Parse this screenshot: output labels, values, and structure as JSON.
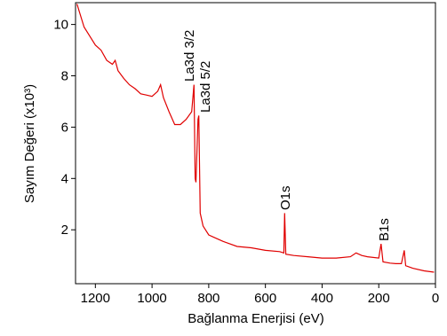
{
  "chart_data": {
    "type": "line",
    "x_label": "Bağlanma Enerjisi (eV)",
    "y_label": "Sayım Değeri (x10³)",
    "annotations": [
      "La3d 3/2",
      "La3d 5/2",
      "O1s",
      "B1s"
    ],
    "color": "#e00000",
    "x": [
      1265,
      1240,
      1220,
      1200,
      1180,
      1160,
      1140,
      1130,
      1120,
      1100,
      1080,
      1060,
      1040,
      1020,
      1000,
      980,
      970,
      960,
      940,
      920,
      900,
      880,
      860,
      852,
      848,
      845,
      838,
      835,
      830,
      820,
      800,
      780,
      750,
      700,
      650,
      600,
      550,
      535,
      532,
      528,
      500,
      450,
      400,
      350,
      300,
      280,
      260,
      240,
      200,
      192,
      185,
      160,
      140,
      120,
      110,
      105,
      80,
      40,
      5
    ],
    "values": [
      10.8,
      9.9,
      9.55,
      9.2,
      9.0,
      8.6,
      8.45,
      8.6,
      8.2,
      7.9,
      7.65,
      7.5,
      7.3,
      7.25,
      7.2,
      7.4,
      7.65,
      7.15,
      6.6,
      6.1,
      6.1,
      6.3,
      6.6,
      7.65,
      4.0,
      3.85,
      6.3,
      6.45,
      2.65,
      2.15,
      1.8,
      1.7,
      1.55,
      1.35,
      1.3,
      1.2,
      1.15,
      1.1,
      2.65,
      1.05,
      1.0,
      0.95,
      0.9,
      0.9,
      0.95,
      1.1,
      1.0,
      0.95,
      0.9,
      1.45,
      0.75,
      0.7,
      0.68,
      0.68,
      1.2,
      0.6,
      0.5,
      0.4,
      0.35
    ],
    "xlim": [
      1270,
      0
    ],
    "xticks": [
      1200,
      1000,
      800,
      600,
      400,
      200,
      0
    ],
    "ylim": [
      -0.1,
      10.85
    ],
    "yticks": [
      2,
      4,
      6,
      8,
      10
    ]
  }
}
